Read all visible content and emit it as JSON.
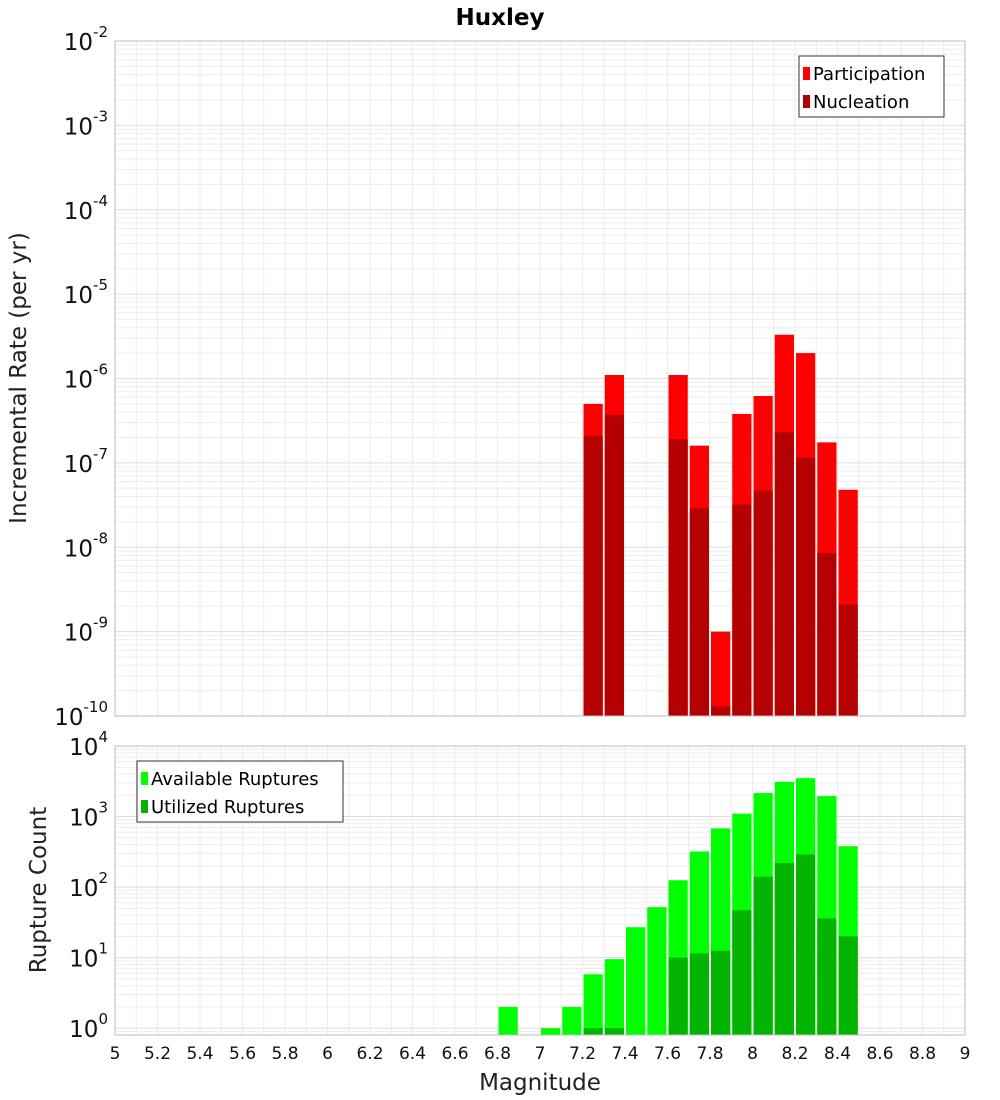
{
  "chart_data": [
    {
      "type": "bar",
      "title": "Huxley",
      "ylabel": "Incremental Rate (per yr)",
      "xlabel": "",
      "yscale": "log",
      "ylim": [
        1e-10,
        0.01
      ],
      "xlim": [
        5,
        9
      ],
      "grid": true,
      "legend_position": "top-right",
      "bar_width": 0.1,
      "x": [
        7.25,
        7.35,
        7.65,
        7.75,
        7.85,
        7.95,
        8.05,
        8.15,
        8.25,
        8.35,
        8.45
      ],
      "series": [
        {
          "name": "Participation",
          "color": "#ff0000",
          "values": [
            5e-07,
            1.1e-06,
            1.1e-06,
            1.6e-07,
            1e-09,
            3.8e-07,
            6.2e-07,
            3.3e-06,
            2e-06,
            1.75e-07,
            4.8e-08
          ]
        },
        {
          "name": "Nucleation",
          "color": "#b40000",
          "values": [
            2.1e-07,
            3.7e-07,
            1.9e-07,
            2.9e-08,
            1.3e-10,
            3.2e-08,
            4.7e-08,
            2.3e-07,
            1.15e-07,
            8.5e-09,
            2.1e-09
          ]
        }
      ]
    },
    {
      "type": "bar",
      "title": "",
      "ylabel": "Rupture Count",
      "xlabel": "Magnitude",
      "yscale": "log",
      "ylim": [
        0.8,
        10000
      ],
      "xlim": [
        5,
        9
      ],
      "grid": true,
      "legend_position": "top-left",
      "bar_width": 0.1,
      "x": [
        6.85,
        7.05,
        7.15,
        7.25,
        7.35,
        7.45,
        7.55,
        7.65,
        7.75,
        7.85,
        7.95,
        8.05,
        8.15,
        8.25,
        8.35,
        8.45
      ],
      "series": [
        {
          "name": "Available Ruptures",
          "color": "#00ff00",
          "values": [
            2,
            1,
            2,
            5.8,
            9.5,
            27,
            52,
            125,
            320,
            680,
            1100,
            2150,
            3100,
            3500,
            1950,
            380
          ]
        },
        {
          "name": "Utilized Ruptures",
          "color": "#00b400",
          "values": [
            0,
            0,
            0,
            1,
            1,
            0,
            0,
            10,
            11.5,
            12.5,
            47,
            140,
            220,
            290,
            36,
            20
          ]
        }
      ]
    }
  ],
  "x_ticks": [
    "5",
    "5.2",
    "5.4",
    "5.6",
    "5.8",
    "6",
    "6.2",
    "6.4",
    "6.6",
    "6.8",
    "7",
    "7.2",
    "7.4",
    "7.6",
    "7.8",
    "8",
    "8.2",
    "8.4",
    "8.6",
    "8.8",
    "9"
  ],
  "y_ticks_top": {
    "base": "10",
    "exponents": [
      "-10",
      "-9",
      "-8",
      "-7",
      "-6",
      "-5",
      "-4",
      "-3",
      "-2"
    ]
  },
  "y_ticks_bottom": {
    "base": "10",
    "exponents": [
      "0",
      "1",
      "2",
      "3",
      "4"
    ]
  }
}
